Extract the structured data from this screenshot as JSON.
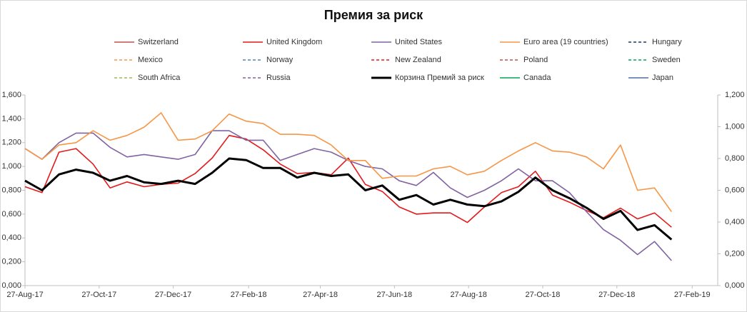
{
  "chart_data": {
    "type": "line",
    "title": "Премия за риск",
    "x": [
      "2017-08-27",
      "2017-09-10",
      "2017-09-24",
      "2017-10-08",
      "2017-10-22",
      "2017-11-05",
      "2017-11-19",
      "2017-12-03",
      "2017-12-17",
      "2017-12-31",
      "2018-01-14",
      "2018-01-28",
      "2018-02-11",
      "2018-02-25",
      "2018-03-11",
      "2018-03-25",
      "2018-04-08",
      "2018-04-22",
      "2018-05-06",
      "2018-05-20",
      "2018-06-03",
      "2018-06-17",
      "2018-07-01",
      "2018-07-15",
      "2018-07-29",
      "2018-08-12",
      "2018-08-26",
      "2018-09-09",
      "2018-09-23",
      "2018-10-07",
      "2018-10-21",
      "2018-11-04",
      "2018-11-18",
      "2018-12-02",
      "2018-12-16",
      "2018-12-30",
      "2019-01-13",
      "2019-01-27",
      "2019-02-10"
    ],
    "xlim": [
      "2017-08-27",
      "2019-03-20"
    ],
    "xticks": [
      {
        "value": "2017-08-27",
        "label": "27-Aug-17"
      },
      {
        "value": "2017-10-27",
        "label": "27-Oct-17"
      },
      {
        "value": "2017-12-27",
        "label": "27-Dec-17"
      },
      {
        "value": "2018-02-27",
        "label": "27-Feb-18"
      },
      {
        "value": "2018-04-27",
        "label": "27-Apr-18"
      },
      {
        "value": "2018-06-27",
        "label": "27-Jun-18"
      },
      {
        "value": "2018-08-27",
        "label": "27-Aug-18"
      },
      {
        "value": "2018-10-27",
        "label": "27-Oct-18"
      },
      {
        "value": "2018-12-27",
        "label": "27-Dec-18"
      },
      {
        "value": "2019-02-27",
        "label": "27-Feb-19"
      }
    ],
    "ylim": [
      0,
      1.6
    ],
    "yticks": [
      {
        "value": 0,
        "label": "0,000"
      },
      {
        "value": 0.2,
        "label": "0,200"
      },
      {
        "value": 0.4,
        "label": "0,400"
      },
      {
        "value": 0.6,
        "label": "0,600"
      },
      {
        "value": 0.8,
        "label": "0,800"
      },
      {
        "value": 1.0,
        "label": "1,000"
      },
      {
        "value": 1.2,
        "label": "1,200"
      },
      {
        "value": 1.4,
        "label": "1,400"
      },
      {
        "value": 1.6,
        "label": "1,600"
      }
    ],
    "y2lim": [
      0,
      1.2
    ],
    "y2ticks": [
      {
        "value": 0,
        "label": "0,000"
      },
      {
        "value": 0.2,
        "label": "0,200"
      },
      {
        "value": 0.4,
        "label": "0,400"
      },
      {
        "value": 0.6,
        "label": "0,600"
      },
      {
        "value": 0.8,
        "label": "0,800"
      },
      {
        "value": 1.0,
        "label": "1,000"
      },
      {
        "value": 1.2,
        "label": "1,200"
      }
    ],
    "legend": "top",
    "series": [
      {
        "name": "Switzerland",
        "color": "#c0504d",
        "dashed": false,
        "values": [
          null,
          null,
          null,
          null,
          null,
          null,
          null,
          null,
          null,
          null,
          null,
          null,
          null,
          null,
          null,
          null,
          null,
          null,
          null,
          null,
          null,
          null,
          null,
          null,
          null,
          null,
          null,
          null,
          null,
          null,
          null,
          null,
          null,
          null,
          null,
          null,
          null,
          null,
          null
        ]
      },
      {
        "name": "United Kingdom",
        "color": "#e31a1c",
        "dashed": false,
        "values": [
          0.83,
          0.78,
          1.12,
          1.15,
          1.02,
          0.82,
          0.87,
          0.83,
          0.85,
          0.86,
          0.94,
          1.07,
          1.26,
          1.23,
          1.14,
          1.02,
          0.94,
          0.95,
          0.93,
          1.07,
          0.85,
          0.79,
          0.66,
          0.6,
          0.61,
          0.61,
          0.53,
          0.66,
          0.78,
          0.83,
          0.96,
          0.76,
          0.7,
          0.63,
          0.57,
          0.65,
          0.56,
          0.61,
          0.49
        ]
      },
      {
        "name": "United States",
        "color": "#8064a2",
        "dashed": false,
        "values": [
          1.15,
          1.06,
          1.2,
          1.28,
          1.28,
          1.16,
          1.08,
          1.1,
          1.08,
          1.06,
          1.1,
          1.3,
          1.3,
          1.22,
          1.22,
          1.05,
          1.1,
          1.15,
          1.12,
          1.05,
          1.0,
          0.98,
          0.88,
          0.84,
          0.95,
          0.82,
          0.74,
          0.8,
          0.88,
          0.98,
          0.88,
          0.88,
          0.78,
          0.62,
          0.47,
          0.38,
          0.26,
          0.37,
          0.21
        ]
      },
      {
        "name": "Euro area (19 countries)",
        "color": "#f79646",
        "dashed": false,
        "values": [
          1.15,
          1.06,
          1.18,
          1.2,
          1.3,
          1.22,
          1.26,
          1.33,
          1.45,
          1.22,
          1.23,
          1.3,
          1.44,
          1.38,
          1.36,
          1.27,
          1.27,
          1.26,
          1.18,
          1.05,
          1.05,
          0.9,
          0.92,
          0.92,
          0.98,
          1.0,
          0.93,
          0.96,
          1.05,
          1.13,
          1.2,
          1.13,
          1.12,
          1.08,
          0.98,
          1.18,
          0.8,
          0.82,
          0.62
        ]
      },
      {
        "name": "Hungary",
        "color": "#1f3864",
        "dashed": true,
        "values": [
          null,
          null,
          null,
          null,
          null,
          null,
          null,
          null,
          null,
          null,
          null,
          null,
          null,
          null,
          null,
          null,
          null,
          null,
          null,
          null,
          null,
          null,
          null,
          null,
          null,
          null,
          null,
          null,
          null,
          null,
          null,
          null,
          null,
          null,
          null,
          null,
          null,
          null,
          null
        ]
      },
      {
        "name": "Mexico",
        "color": "#f79646",
        "dashed": true,
        "values": [
          null,
          null,
          null,
          null,
          null,
          null,
          null,
          null,
          null,
          null,
          null,
          null,
          null,
          null,
          null,
          null,
          null,
          null,
          null,
          null,
          null,
          null,
          null,
          null,
          null,
          null,
          null,
          null,
          null,
          null,
          null,
          null,
          null,
          null,
          null,
          null,
          null,
          null,
          null
        ]
      },
      {
        "name": "Norway",
        "color": "#4f81bd",
        "dashed": true,
        "values": [
          null,
          null,
          null,
          null,
          null,
          null,
          null,
          null,
          null,
          null,
          null,
          null,
          null,
          null,
          null,
          null,
          null,
          null,
          null,
          null,
          null,
          null,
          null,
          null,
          null,
          null,
          null,
          null,
          null,
          null,
          null,
          null,
          null,
          null,
          null,
          null,
          null,
          null,
          null
        ]
      },
      {
        "name": "New Zealand",
        "color": "#e31a1c",
        "dashed": true,
        "values": [
          null,
          null,
          null,
          null,
          null,
          null,
          null,
          null,
          null,
          null,
          null,
          null,
          null,
          null,
          null,
          null,
          null,
          null,
          null,
          null,
          null,
          null,
          null,
          null,
          null,
          null,
          null,
          null,
          null,
          null,
          null,
          null,
          null,
          null,
          null,
          null,
          null,
          null,
          null
        ]
      },
      {
        "name": "Poland",
        "color": "#c0504d",
        "dashed": true,
        "values": [
          null,
          null,
          null,
          null,
          null,
          null,
          null,
          null,
          null,
          null,
          null,
          null,
          null,
          null,
          null,
          null,
          null,
          null,
          null,
          null,
          null,
          null,
          null,
          null,
          null,
          null,
          null,
          null,
          null,
          null,
          null,
          null,
          null,
          null,
          null,
          null,
          null,
          null,
          null
        ]
      },
      {
        "name": "Sweden",
        "color": "#00a651",
        "dashed": true,
        "values": [
          null,
          null,
          null,
          null,
          null,
          null,
          null,
          null,
          null,
          null,
          null,
          null,
          null,
          null,
          null,
          null,
          null,
          null,
          null,
          null,
          null,
          null,
          null,
          null,
          null,
          null,
          null,
          null,
          null,
          null,
          null,
          null,
          null,
          null,
          null,
          null,
          null,
          null,
          null
        ]
      },
      {
        "name": "South Africa",
        "color": "#9bbb59",
        "dashed": true,
        "values": [
          null,
          null,
          null,
          null,
          null,
          null,
          null,
          null,
          null,
          null,
          null,
          null,
          null,
          null,
          null,
          null,
          null,
          null,
          null,
          null,
          null,
          null,
          null,
          null,
          null,
          null,
          null,
          null,
          null,
          null,
          null,
          null,
          null,
          null,
          null,
          null,
          null,
          null,
          null
        ]
      },
      {
        "name": "Russia",
        "color": "#8064a2",
        "dashed": true,
        "values": [
          null,
          null,
          null,
          null,
          null,
          null,
          null,
          null,
          null,
          null,
          null,
          null,
          null,
          null,
          null,
          null,
          null,
          null,
          null,
          null,
          null,
          null,
          null,
          null,
          null,
          null,
          null,
          null,
          null,
          null,
          null,
          null,
          null,
          null,
          null,
          null,
          null,
          null,
          null
        ]
      },
      {
        "name": "Корзина Премий за риск",
        "color": "#000000",
        "dashed": false,
        "emphasis": true,
        "axis": "y2",
        "values": [
          0.66,
          0.6,
          0.7,
          0.73,
          0.71,
          0.66,
          0.69,
          0.65,
          0.64,
          0.66,
          0.64,
          0.71,
          0.8,
          0.79,
          0.74,
          0.74,
          0.68,
          0.71,
          0.69,
          0.7,
          0.6,
          0.63,
          0.54,
          0.57,
          0.51,
          0.54,
          0.51,
          0.5,
          0.53,
          0.59,
          0.68,
          0.6,
          0.55,
          0.49,
          0.42,
          0.47,
          0.35,
          0.38,
          0.29
        ]
      },
      {
        "name": "Canada",
        "color": "#00a651",
        "dashed": false,
        "values": [
          null,
          null,
          null,
          null,
          null,
          null,
          null,
          null,
          null,
          null,
          null,
          null,
          null,
          null,
          null,
          null,
          null,
          null,
          null,
          null,
          null,
          null,
          null,
          null,
          null,
          null,
          null,
          null,
          null,
          null,
          null,
          null,
          null,
          null,
          null,
          null,
          null,
          null,
          null
        ]
      },
      {
        "name": "Japan",
        "color": "#4f6fa0",
        "dashed": false,
        "values": [
          null,
          null,
          null,
          null,
          null,
          null,
          null,
          null,
          null,
          null,
          null,
          null,
          null,
          null,
          null,
          null,
          null,
          null,
          null,
          null,
          null,
          null,
          null,
          null,
          null,
          null,
          null,
          null,
          null,
          null,
          null,
          null,
          null,
          null,
          null,
          null,
          null,
          null,
          null
        ]
      }
    ]
  }
}
